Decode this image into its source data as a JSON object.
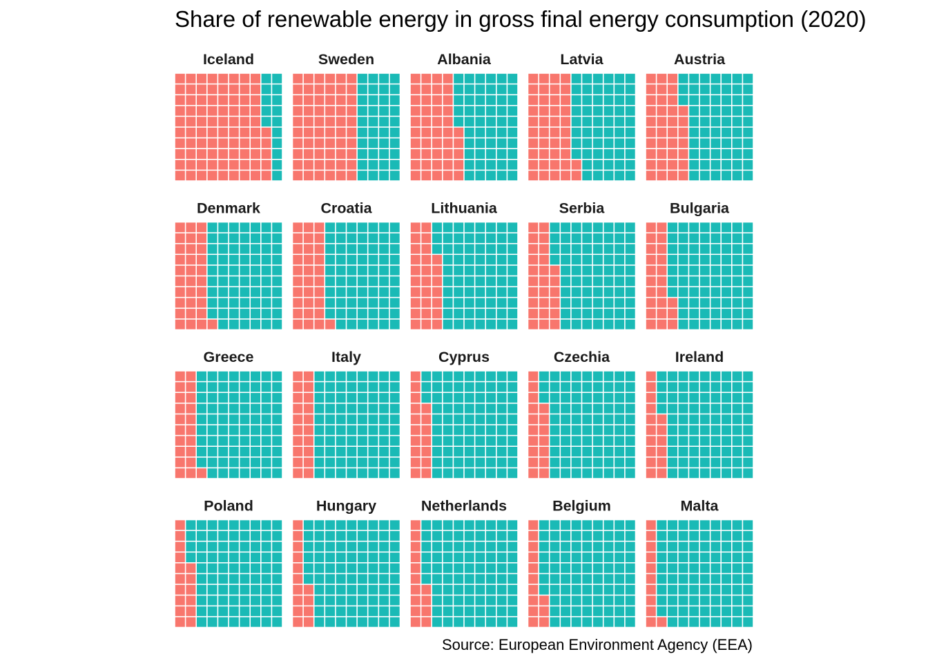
{
  "chart_data": {
    "type": "waffle",
    "title": "Share of renewable energy in gross final energy consumption (2020)",
    "caption": "Source: European Environment Agency (EEA)",
    "grid": "10 x 10",
    "unit": "%",
    "colors": {
      "renewable": "#F8766D",
      "other": "#1ABAB6",
      "cell_border": "#ffffff"
    },
    "panels": [
      {
        "country": "Iceland",
        "value": 85
      },
      {
        "country": "Sweden",
        "value": 60
      },
      {
        "country": "Albania",
        "value": 45
      },
      {
        "country": "Latvia",
        "value": 42
      },
      {
        "country": "Austria",
        "value": 37
      },
      {
        "country": "Denmark",
        "value": 31
      },
      {
        "country": "Croatia",
        "value": 31
      },
      {
        "country": "Lithuania",
        "value": 27
      },
      {
        "country": "Serbia",
        "value": 26
      },
      {
        "country": "Bulgaria",
        "value": 23
      },
      {
        "country": "Greece",
        "value": 21
      },
      {
        "country": "Italy",
        "value": 20
      },
      {
        "country": "Cyprus",
        "value": 17
      },
      {
        "country": "Czechia",
        "value": 17
      },
      {
        "country": "Ireland",
        "value": 16
      },
      {
        "country": "Poland",
        "value": 16
      },
      {
        "country": "Hungary",
        "value": 14
      },
      {
        "country": "Netherlands",
        "value": 14
      },
      {
        "country": "Belgium",
        "value": 13
      },
      {
        "country": "Malta",
        "value": 11
      }
    ]
  }
}
